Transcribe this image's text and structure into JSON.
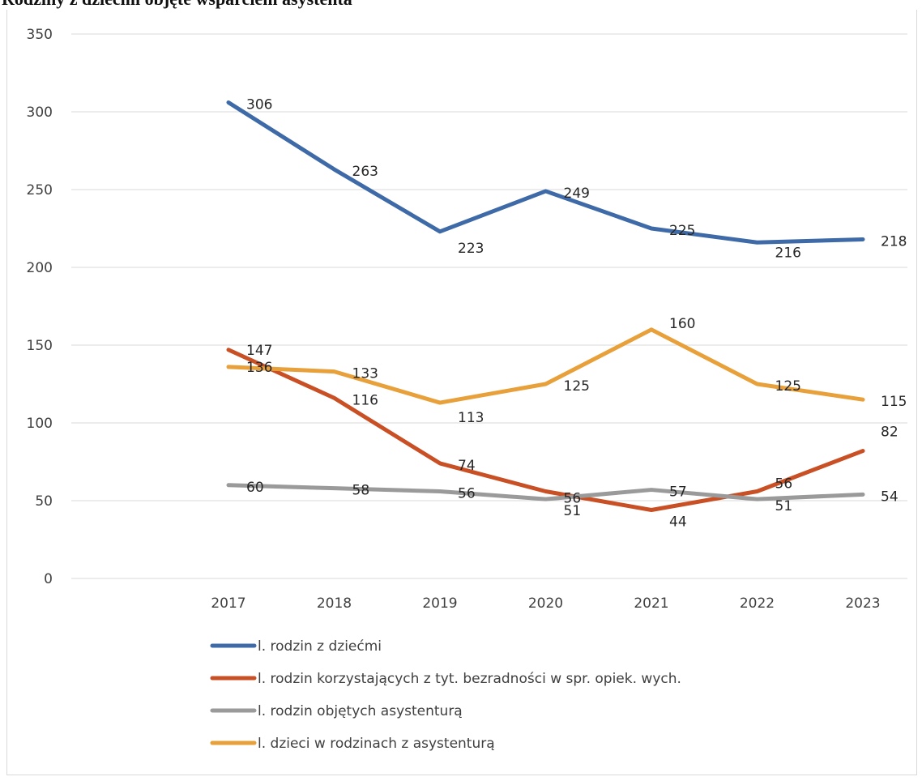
{
  "title": "Rodziny z dziećmi objęte wsparciem asystenta",
  "chart_data": {
    "type": "line",
    "categories": [
      "2017",
      "2018",
      "2019",
      "2020",
      "2021",
      "2022",
      "2023"
    ],
    "ylim": [
      0,
      350
    ],
    "yticks": [
      0,
      50,
      100,
      150,
      200,
      250,
      300,
      350
    ],
    "grid": true,
    "legend_position": "bottom",
    "series": [
      {
        "name": "l. rodzin z dziećmi",
        "color": "#3e6aa7",
        "values": [
          306,
          263,
          223,
          249,
          225,
          216,
          218
        ]
      },
      {
        "name": "l. rodzin korzystających z tyt. bezradności w spr. opiek. wych.",
        "color": "#c94f24",
        "values": [
          147,
          116,
          74,
          56,
          44,
          56,
          82
        ]
      },
      {
        "name": "l. rodzin objętych asystenturą",
        "color": "#9a9a9a",
        "values": [
          60,
          58,
          56,
          51,
          57,
          51,
          54
        ]
      },
      {
        "name": "l. dzieci w rodzinach z asystenturą",
        "color": "#e8a03a",
        "values": [
          136,
          133,
          113,
          125,
          160,
          125,
          115
        ]
      }
    ]
  }
}
